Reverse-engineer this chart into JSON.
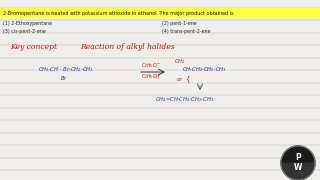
{
  "bg_color": "#f0eeea",
  "highlight_color": "#ffff44",
  "question_text": "2-Bromopentane is heated with potassium ethoxide in ethanol. The major product obtained is",
  "options": [
    "(1) 2-Ethoxypentane",
    "(2) pent-1-ene",
    "(3) cis-pent-2-ene",
    "(4) trans-pent-2-ene"
  ],
  "key_concept_text": "Key concept",
  "key_concept_text2": "Reaction of alkyl halides",
  "lines_color": "#bbbbbb",
  "text_color_dark": "#222222",
  "text_color_red": "#cc1100",
  "text_color_blue": "#1133bb",
  "logo_dark": "#222222",
  "logo_ring": "#888888"
}
